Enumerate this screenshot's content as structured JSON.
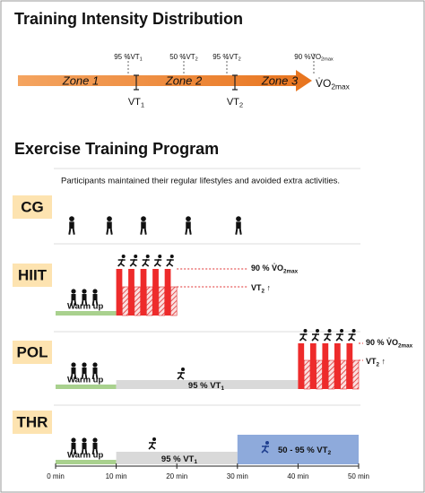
{
  "intensity": {
    "title": "Training Intensity Distribution",
    "thresholds": [
      {
        "text": "95 %VT",
        "sub": "1"
      },
      {
        "text": "50 %VT",
        "sub": "2"
      },
      {
        "text": "95 %VT",
        "sub": "2"
      },
      {
        "text": "90 %V̇O",
        "sub": "2max"
      }
    ],
    "zones": [
      "Zone 1",
      "Zone 2",
      "Zone 3"
    ],
    "markers": [
      {
        "text": "VT",
        "sub": "1"
      },
      {
        "text": "VT",
        "sub": "2"
      }
    ],
    "end": {
      "text": "V̇O",
      "sub": "2max"
    }
  },
  "program": {
    "title": "Exercise Training Program",
    "cg": {
      "label": "CG",
      "note": "Participants maintained their regular lifestyles and avoided extra activities."
    },
    "hiit": {
      "label": "HIIT",
      "warmup": "Warm up",
      "high": {
        "text": "90 % V̇O",
        "sub": "2max"
      },
      "low": {
        "text": "VT",
        "sub": "2",
        "suffix": " ↑"
      }
    },
    "pol": {
      "label": "POL",
      "warmup": "Warm up",
      "base": {
        "text": "95 % VT",
        "sub": "1"
      },
      "high": {
        "text": "90 % V̇O",
        "sub": "2max"
      },
      "low": {
        "text": "VT",
        "sub": "2",
        "suffix": " ↑"
      }
    },
    "thr": {
      "label": "THR",
      "warmup": "Warm up",
      "base": {
        "text": "95 % VT",
        "sub": "1"
      },
      "upper": {
        "text": "50 - 95 % VT",
        "sub": "2"
      }
    },
    "axis": [
      "0 min",
      "10 min",
      "20 min",
      "30 min",
      "40 min",
      "50 min"
    ]
  }
}
